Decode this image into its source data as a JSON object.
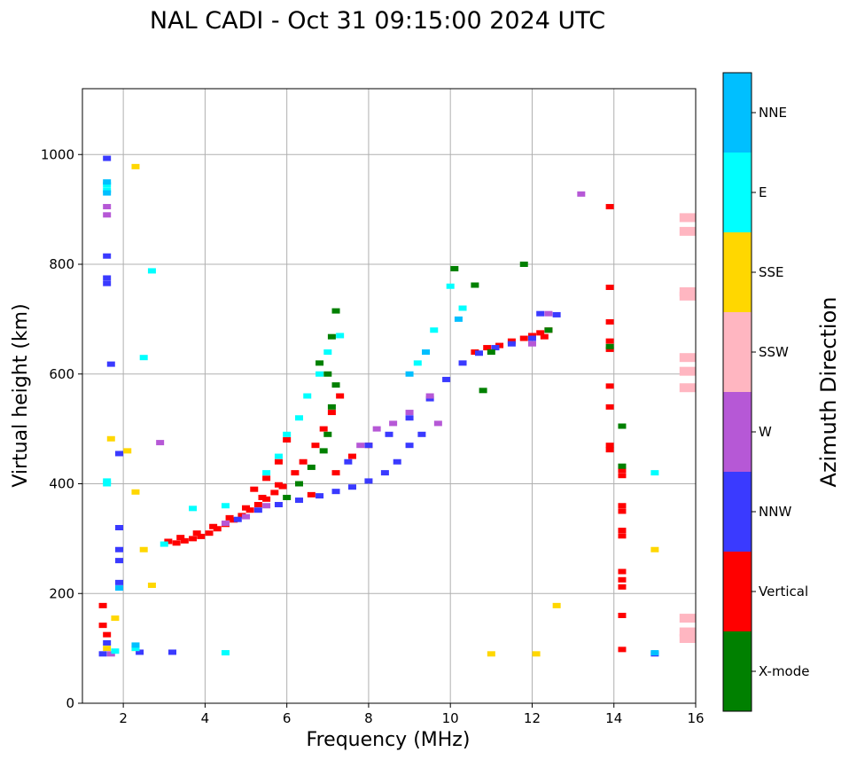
{
  "chart_data": {
    "type": "scatter",
    "title": "NAL CADI - Oct 31 09:15:00 2024 UTC",
    "xlabel": "Frequency (MHz)",
    "ylabel": "Virtual height (km)",
    "xlim": [
      1,
      16
    ],
    "ylim": [
      0,
      1120
    ],
    "xticks": [
      2,
      4,
      6,
      8,
      10,
      12,
      14,
      16
    ],
    "yticks": [
      0,
      200,
      400,
      600,
      800,
      1000
    ],
    "grid": true,
    "colorbar": {
      "label": "Azimuth Direction",
      "categories": [
        {
          "name": "X-mode",
          "color": "#008000"
        },
        {
          "name": "Vertical",
          "color": "#ff0000"
        },
        {
          "name": "NNW",
          "color": "#3a3aff"
        },
        {
          "name": "W",
          "color": "#b658d6"
        },
        {
          "name": "SSW",
          "color": "#ffb6c1"
        },
        {
          "name": "SSE",
          "color": "#ffd700"
        },
        {
          "name": "E",
          "color": "#00ffff"
        },
        {
          "name": "NNE",
          "color": "#00bfff"
        }
      ]
    },
    "series": [
      {
        "name": "Vertical",
        "points": [
          [
            3.1,
            295
          ],
          [
            3.3,
            292
          ],
          [
            3.5,
            296
          ],
          [
            3.7,
            300
          ],
          [
            3.9,
            304
          ],
          [
            4.1,
            310
          ],
          [
            4.3,
            318
          ],
          [
            4.5,
            326
          ],
          [
            4.7,
            334
          ],
          [
            4.9,
            342
          ],
          [
            5.1,
            352
          ],
          [
            5.3,
            362
          ],
          [
            5.5,
            372
          ],
          [
            5.7,
            384
          ],
          [
            5.9,
            395
          ],
          [
            3.4,
            302
          ],
          [
            3.8,
            310
          ],
          [
            4.2,
            322
          ],
          [
            4.6,
            338
          ],
          [
            5.0,
            356
          ],
          [
            5.4,
            375
          ],
          [
            5.8,
            398
          ],
          [
            6.2,
            420
          ],
          [
            6.4,
            440
          ],
          [
            6.7,
            470
          ],
          [
            6.9,
            500
          ],
          [
            7.1,
            530
          ],
          [
            7.3,
            560
          ],
          [
            6.6,
            380
          ],
          [
            7.2,
            420
          ],
          [
            7.6,
            450
          ],
          [
            8.0,
            470
          ],
          [
            5.2,
            390
          ],
          [
            5.5,
            410
          ],
          [
            5.8,
            440
          ],
          [
            6.0,
            480
          ],
          [
            10.6,
            640
          ],
          [
            10.9,
            648
          ],
          [
            11.2,
            652
          ],
          [
            11.5,
            660
          ],
          [
            11.8,
            665
          ],
          [
            12.0,
            670
          ],
          [
            12.2,
            675
          ],
          [
            12.4,
            680
          ],
          [
            12.3,
            668
          ],
          [
            14.2,
            415
          ],
          [
            14.2,
            425
          ],
          [
            14.2,
            350
          ],
          [
            14.2,
            360
          ],
          [
            14.2,
            305
          ],
          [
            14.2,
            315
          ],
          [
            14.2,
            225
          ],
          [
            14.2,
            240
          ],
          [
            14.2,
            160
          ],
          [
            14.2,
            98
          ],
          [
            14.2,
            212
          ],
          [
            13.9,
            758
          ],
          [
            13.9,
            695
          ],
          [
            13.9,
            660
          ],
          [
            13.9,
            645
          ],
          [
            13.9,
            578
          ],
          [
            13.9,
            540
          ],
          [
            13.9,
            470
          ],
          [
            13.9,
            462
          ],
          [
            13.9,
            905
          ],
          [
            1.5,
            178
          ],
          [
            1.5,
            142
          ],
          [
            1.6,
            125
          ]
        ]
      },
      {
        "name": "NNW",
        "points": [
          [
            4.8,
            335
          ],
          [
            5.3,
            352
          ],
          [
            5.8,
            362
          ],
          [
            6.3,
            370
          ],
          [
            6.8,
            378
          ],
          [
            7.2,
            386
          ],
          [
            7.6,
            394
          ],
          [
            8.0,
            405
          ],
          [
            8.4,
            420
          ],
          [
            8.7,
            440
          ],
          [
            9.0,
            470
          ],
          [
            9.3,
            490
          ],
          [
            7.5,
            440
          ],
          [
            8.0,
            470
          ],
          [
            8.5,
            490
          ],
          [
            9.0,
            520
          ],
          [
            9.5,
            555
          ],
          [
            9.9,
            590
          ],
          [
            10.3,
            620
          ],
          [
            10.7,
            638
          ],
          [
            11.1,
            648
          ],
          [
            11.5,
            655
          ],
          [
            12.0,
            665
          ],
          [
            12.6,
            708
          ],
          [
            12.2,
            710
          ],
          [
            15.0,
            90
          ],
          [
            1.6,
            993
          ],
          [
            1.6,
            775
          ],
          [
            1.6,
            765
          ],
          [
            1.6,
            815
          ],
          [
            1.7,
            618
          ],
          [
            1.9,
            455
          ],
          [
            1.9,
            320
          ],
          [
            1.9,
            280
          ],
          [
            1.9,
            260
          ],
          [
            1.9,
            220
          ],
          [
            1.6,
            110
          ],
          [
            2.4,
            93
          ],
          [
            3.2,
            93
          ],
          [
            1.5,
            90
          ]
        ]
      },
      {
        "name": "W",
        "points": [
          [
            4.5,
            328
          ],
          [
            5.0,
            340
          ],
          [
            5.5,
            360
          ],
          [
            7.8,
            470
          ],
          [
            8.2,
            500
          ],
          [
            8.6,
            510
          ],
          [
            9.0,
            530
          ],
          [
            9.5,
            560
          ],
          [
            9.7,
            510
          ],
          [
            12.0,
            655
          ],
          [
            12.4,
            710
          ],
          [
            13.2,
            928
          ],
          [
            1.6,
            905
          ],
          [
            1.6,
            890
          ],
          [
            2.9,
            475
          ],
          [
            1.7,
            90
          ]
        ]
      },
      {
        "name": "SSW",
        "points": [
          [
            15.8,
            885
          ],
          [
            15.8,
            860
          ],
          [
            15.8,
            750
          ],
          [
            15.8,
            742
          ],
          [
            15.8,
            630
          ],
          [
            15.8,
            605
          ],
          [
            15.8,
            575
          ],
          [
            15.8,
            155
          ],
          [
            15.8,
            130
          ],
          [
            15.8,
            118
          ]
        ]
      },
      {
        "name": "SSE",
        "points": [
          [
            2.1,
            460
          ],
          [
            2.3,
            385
          ],
          [
            2.5,
            280
          ],
          [
            2.7,
            215
          ],
          [
            1.7,
            482
          ],
          [
            2.3,
            978
          ],
          [
            12.6,
            178
          ],
          [
            15.0,
            280
          ],
          [
            11.0,
            90
          ],
          [
            12.1,
            90
          ],
          [
            1.6,
            100
          ],
          [
            1.8,
            155
          ],
          [
            2.3,
            100
          ]
        ]
      },
      {
        "name": "E",
        "points": [
          [
            3.0,
            290
          ],
          [
            3.7,
            355
          ],
          [
            4.5,
            360
          ],
          [
            5.5,
            420
          ],
          [
            5.8,
            450
          ],
          [
            6.0,
            490
          ],
          [
            6.3,
            520
          ],
          [
            6.5,
            560
          ],
          [
            6.8,
            600
          ],
          [
            7.0,
            640
          ],
          [
            7.3,
            670
          ],
          [
            9.2,
            620
          ],
          [
            9.6,
            680
          ],
          [
            10.0,
            760
          ],
          [
            10.3,
            720
          ],
          [
            4.5,
            92
          ],
          [
            1.6,
            945
          ],
          [
            1.6,
            935
          ],
          [
            1.6,
            405
          ],
          [
            1.6,
            400
          ],
          [
            2.5,
            630
          ],
          [
            2.3,
            100
          ],
          [
            1.8,
            95
          ],
          [
            15.0,
            420
          ],
          [
            2.7,
            788
          ]
        ]
      },
      {
        "name": "NNE",
        "points": [
          [
            1.6,
            950
          ],
          [
            1.6,
            930
          ],
          [
            9.0,
            600
          ],
          [
            9.4,
            640
          ],
          [
            10.2,
            700
          ],
          [
            15.0,
            92
          ],
          [
            2.3,
            106
          ],
          [
            1.9,
            210
          ]
        ]
      },
      {
        "name": "X-mode",
        "points": [
          [
            6.0,
            375
          ],
          [
            6.3,
            400
          ],
          [
            6.6,
            430
          ],
          [
            6.9,
            460
          ],
          [
            7.0,
            490
          ],
          [
            7.1,
            540
          ],
          [
            7.2,
            580
          ],
          [
            7.0,
            600
          ],
          [
            6.8,
            620
          ],
          [
            7.1,
            668
          ],
          [
            10.1,
            792
          ],
          [
            10.6,
            762
          ],
          [
            11.0,
            640
          ],
          [
            10.8,
            570
          ],
          [
            11.8,
            800
          ],
          [
            12.4,
            680
          ],
          [
            14.2,
            505
          ],
          [
            14.2,
            432
          ],
          [
            13.9,
            650
          ],
          [
            7.2,
            715
          ]
        ]
      }
    ]
  }
}
